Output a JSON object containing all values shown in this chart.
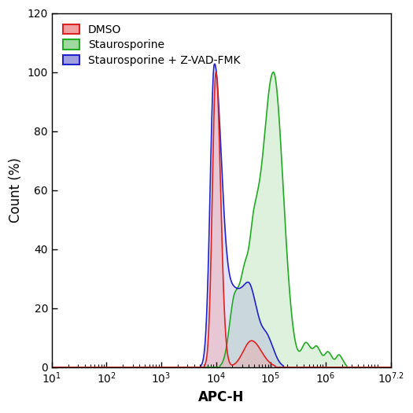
{
  "xlabel": "APC-H",
  "ylabel": "Count (%)",
  "xlim_log": [
    1,
    7.2
  ],
  "ylim": [
    0,
    120
  ],
  "yticks": [
    0,
    20,
    40,
    60,
    80,
    100,
    120
  ],
  "legend": [
    {
      "label": "DMSO",
      "color": "#dd2222",
      "facecolor": "#f0a0a0"
    },
    {
      "label": "Staurosporine",
      "color": "#22aa22",
      "facecolor": "#a0d8a0"
    },
    {
      "label": "Staurosporine + Z-VAD-FMK",
      "color": "#2222cc",
      "facecolor": "#a0a0e0"
    }
  ]
}
